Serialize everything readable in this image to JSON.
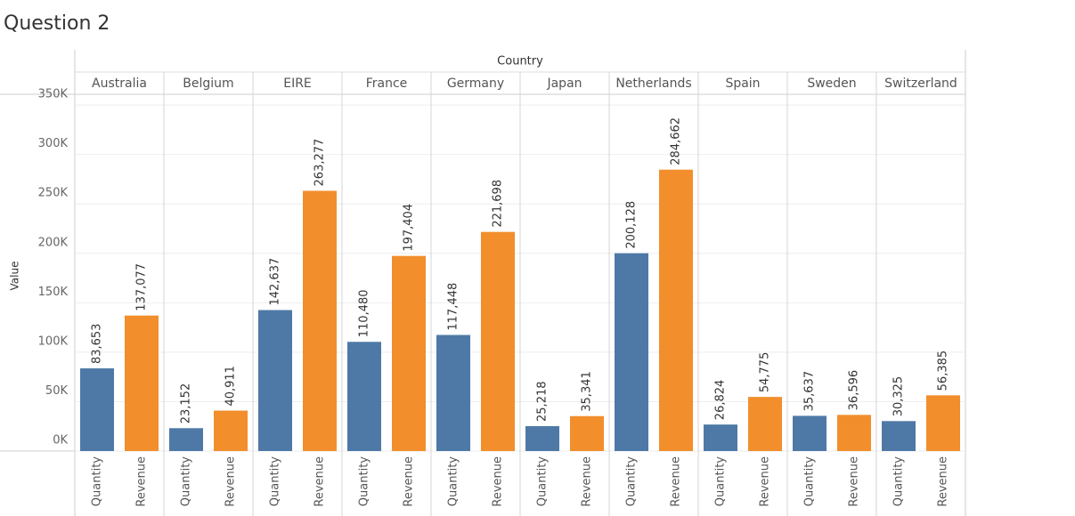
{
  "chart_data": {
    "type": "bar",
    "title": "Question 2",
    "header": "Country",
    "y_label": "Value",
    "categories": [
      "Australia",
      "Belgium",
      "EIRE",
      "France",
      "Germany",
      "Japan",
      "Netherlands",
      "Spain",
      "Sweden",
      "Switzerland"
    ],
    "series": [
      {
        "name": "Quantity",
        "color": "#4e79a7",
        "values": [
          83653,
          23152,
          142637,
          110480,
          117448,
          25218,
          200128,
          26824,
          35637,
          30325
        ],
        "value_labels": [
          "83,653",
          "23,152",
          "142,637",
          "110,480",
          "117,448",
          "25,218",
          "200,128",
          "26,824",
          "35,637",
          "30,325"
        ]
      },
      {
        "name": "Revenue",
        "color": "#f28e2b",
        "values": [
          137077,
          40911,
          263277,
          197404,
          221698,
          35341,
          284662,
          54775,
          36596,
          56385
        ],
        "value_labels": [
          "137,077",
          "40,911",
          "263,277",
          "197,404",
          "221,698",
          "35,341",
          "284,662",
          "54,775",
          "36,596",
          "56,385"
        ]
      }
    ],
    "ylim": [
      0,
      360000
    ],
    "yticks": [
      {
        "value": 0,
        "label": "0K"
      },
      {
        "value": 50000,
        "label": "50K"
      },
      {
        "value": 100000,
        "label": "100K"
      },
      {
        "value": 150000,
        "label": "150K"
      },
      {
        "value": 200000,
        "label": "200K"
      },
      {
        "value": 250000,
        "label": "250K"
      },
      {
        "value": 300000,
        "label": "300K"
      },
      {
        "value": 350000,
        "label": "350K"
      }
    ],
    "grid": true
  }
}
